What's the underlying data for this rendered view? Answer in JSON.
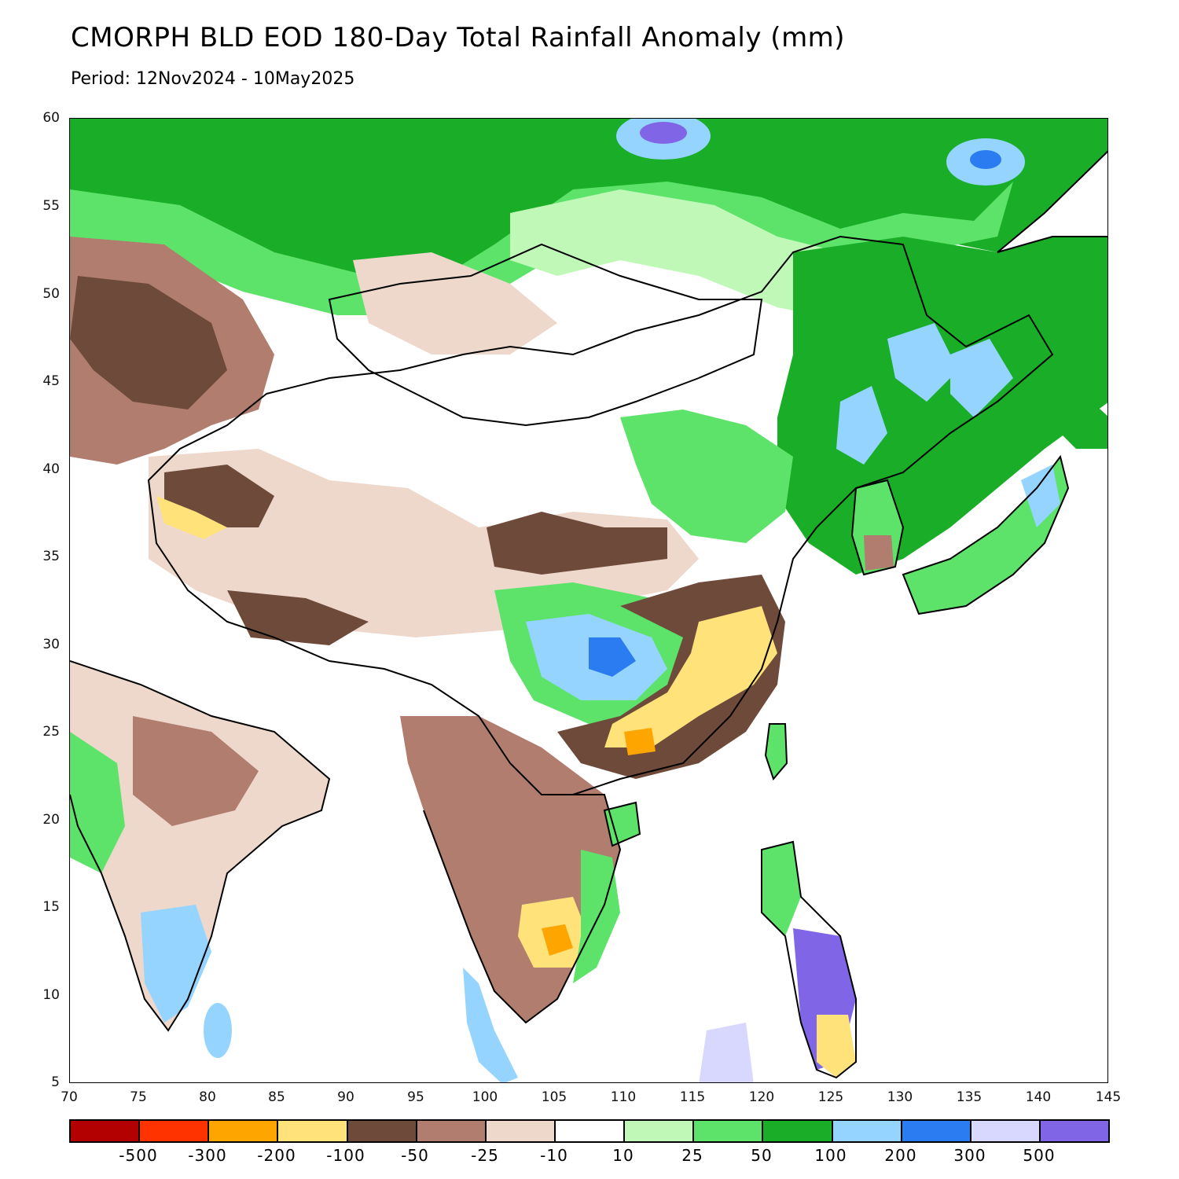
{
  "header": {
    "title": "CMORPH BLD EOD 180-Day Total Rainfall Anomaly (mm)",
    "period": "Period: 12Nov2024 - 10May2025"
  },
  "axes": {
    "y_ticks": [
      "60",
      "55",
      "50",
      "45",
      "40",
      "35",
      "30",
      "25",
      "20",
      "15",
      "10",
      "5"
    ],
    "x_ticks": [
      "70",
      "75",
      "80",
      "85",
      "90",
      "95",
      "100",
      "105",
      "110",
      "115",
      "120",
      "125",
      "130",
      "135",
      "140",
      "145"
    ]
  },
  "legend": {
    "colors": [
      "#b30000",
      "#ff3300",
      "#ffa500",
      "#ffe27a",
      "#6e4a3a",
      "#b07d6e",
      "#eed8cc",
      "#ffffff",
      "#c0f8b8",
      "#5de36a",
      "#1aae28",
      "#94d4ff",
      "#2b7cf0",
      "#d8d8ff",
      "#8066e6"
    ],
    "labels": [
      "-500",
      "-300",
      "-200",
      "-100",
      "-50",
      "-25",
      "-10",
      "10",
      "25",
      "50",
      "100",
      "200",
      "300",
      "500"
    ]
  },
  "map": {
    "lon_range": [
      70,
      145
    ],
    "lat_range": [
      5,
      60
    ],
    "units": "mm"
  }
}
